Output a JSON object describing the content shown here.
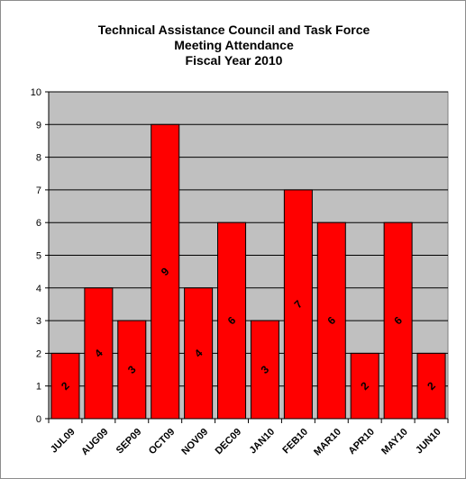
{
  "chart_data": {
    "type": "bar",
    "title_lines": [
      "Technical Assistance Council and Task Force",
      "Meeting Attendance",
      "Fiscal Year 2010"
    ],
    "categories": [
      "JUL09",
      "AUG09",
      "SEP09",
      "OCT09",
      "NOV09",
      "DEC09",
      "JAN10",
      "FEB10",
      "MAR10",
      "APR10",
      "MAY10",
      "JUN10"
    ],
    "values": [
      2,
      4,
      3,
      9,
      4,
      6,
      3,
      7,
      6,
      2,
      6,
      2
    ],
    "ylim": [
      0,
      10
    ],
    "ytick_step": 1,
    "grid": true,
    "legend": "none",
    "colors": {
      "bar_fill": "#ff0000",
      "bar_stroke": "#000000",
      "plot_background": "#c0c0c0",
      "gridline": "#000000"
    }
  }
}
